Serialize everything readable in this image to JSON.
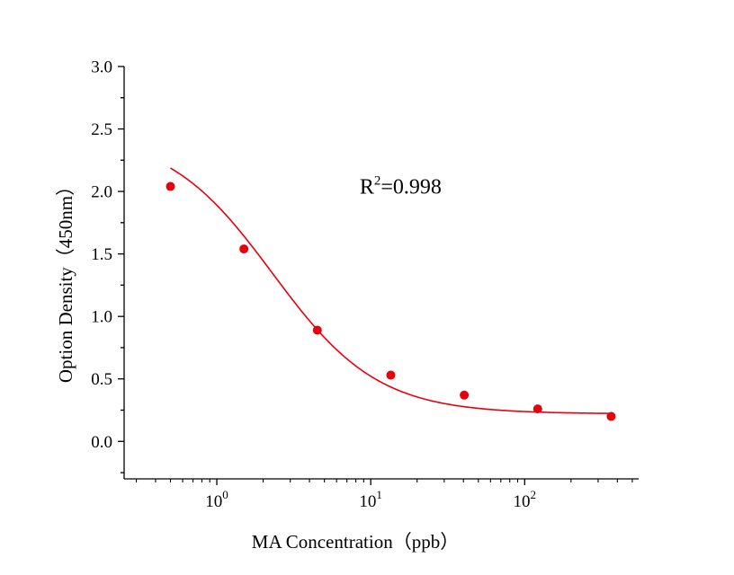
{
  "chart_data": {
    "type": "scatter",
    "x_scale": "log10",
    "xlabel": "MA  Concentration（ppb）",
    "ylabel": "Option Density（450nm）",
    "xlim": [
      0.25,
      550
    ],
    "ylim": [
      -0.3,
      3.0
    ],
    "x_ticks": [
      {
        "value": 1,
        "base": "10",
        "exp": "0"
      },
      {
        "value": 10,
        "base": "10",
        "exp": "1"
      },
      {
        "value": 100,
        "base": "10",
        "exp": "2"
      }
    ],
    "y_ticks": [
      {
        "value": 0.0,
        "label": "0.0"
      },
      {
        "value": 0.5,
        "label": "0.5"
      },
      {
        "value": 1.0,
        "label": "1.0"
      },
      {
        "value": 1.5,
        "label": "1.5"
      },
      {
        "value": 2.0,
        "label": "2.0"
      },
      {
        "value": 2.5,
        "label": "2.5"
      },
      {
        "value": 3.0,
        "label": "3.0"
      }
    ],
    "points": [
      {
        "x": 0.5,
        "y": 2.04
      },
      {
        "x": 1.5,
        "y": 1.54
      },
      {
        "x": 4.5,
        "y": 0.89
      },
      {
        "x": 13.5,
        "y": 0.53
      },
      {
        "x": 40.5,
        "y": 0.37
      },
      {
        "x": 121.5,
        "y": 0.26
      },
      {
        "x": 364.5,
        "y": 0.2
      }
    ],
    "fit": {
      "model": "4PL",
      "A": 2.47,
      "D": 0.22,
      "C": 2.3,
      "B": 1.27
    },
    "annotation": {
      "base": "R",
      "sup": "2",
      "text": "=0.998",
      "x": 19,
      "y": 2.04
    },
    "colors": {
      "marker": "#e8000b",
      "curve": "#e8000b",
      "axis": "#000000"
    },
    "grid": false,
    "legend": "none"
  }
}
